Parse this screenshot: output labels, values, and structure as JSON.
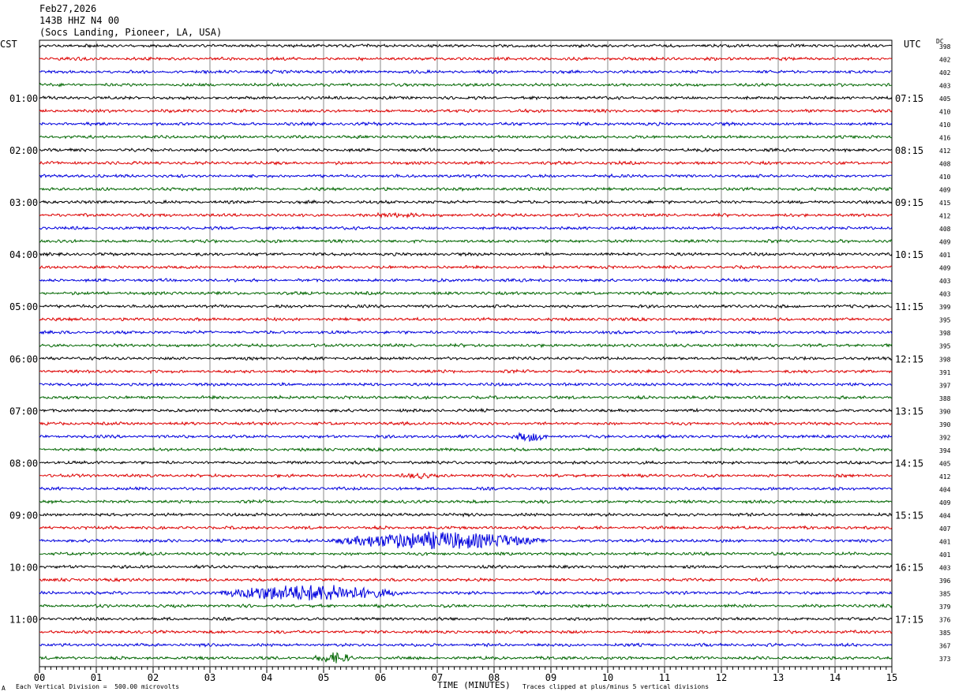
{
  "header": {
    "date": "Feb27,2026",
    "station": "143B HHZ N4 00",
    "location": "(Socs Landing, Pioneer, LA, USA)"
  },
  "left_axis_label": "CST",
  "right_axis_label": "UTC",
  "dc_label": "DC",
  "footer": {
    "scale_note": "Each Vertical Division =  500.00 microvolts",
    "xlabel": "TIME (MINUTES)",
    "clip_note": "Traces clipped at plus/minus 5 vertical divisions",
    "corner_mark": "A"
  },
  "colors": {
    "cycle": [
      "#000000",
      "#dd0000",
      "#0000dd",
      "#006600"
    ],
    "grid": "#888888"
  },
  "chart_data": {
    "type": "line",
    "title": "",
    "xlabel": "TIME (MINUTES)",
    "x_ticks": [
      "00",
      "01",
      "02",
      "03",
      "04",
      "05",
      "06",
      "07",
      "08",
      "09",
      "10",
      "11",
      "12",
      "13",
      "14",
      "15"
    ],
    "xlim": [
      0,
      15
    ],
    "minutes_per_trace": 15,
    "trace_count": 48,
    "cst_labels": [
      "01:00",
      "02:00",
      "03:00",
      "04:00",
      "05:00",
      "06:00",
      "07:00",
      "08:00",
      "09:00",
      "10:00",
      "11:00"
    ],
    "utc_labels": [
      "07:15",
      "08:15",
      "09:15",
      "10:15",
      "11:15",
      "12:15",
      "13:15",
      "14:15",
      "15:15",
      "16:15",
      "17:15"
    ],
    "dc_offsets": [
      398,
      402,
      402,
      403,
      405,
      410,
      410,
      416,
      412,
      408,
      410,
      409,
      415,
      412,
      408,
      409,
      401,
      409,
      403,
      403,
      399,
      395,
      398,
      395,
      398,
      391,
      397,
      388,
      390,
      390,
      392,
      394,
      405,
      412,
      404,
      409,
      404,
      407,
      401,
      401,
      403,
      396,
      385,
      379,
      376,
      385,
      367,
      373
    ],
    "events": [
      {
        "trace": 13,
        "start_min": 5.8,
        "end_min": 6.8,
        "amp": 0.4
      },
      {
        "trace": 30,
        "start_min": 8.3,
        "end_min": 9.0,
        "amp": 1.1
      },
      {
        "trace": 33,
        "start_min": 6.3,
        "end_min": 7.0,
        "amp": 0.5
      },
      {
        "trace": 38,
        "start_min": 5.0,
        "end_min": 9.0,
        "amp": 2.4
      },
      {
        "trace": 42,
        "start_min": 3.0,
        "end_min": 6.5,
        "amp": 2.2
      },
      {
        "trace": 47,
        "start_min": 4.8,
        "end_min": 5.6,
        "amp": 1.3
      }
    ]
  }
}
